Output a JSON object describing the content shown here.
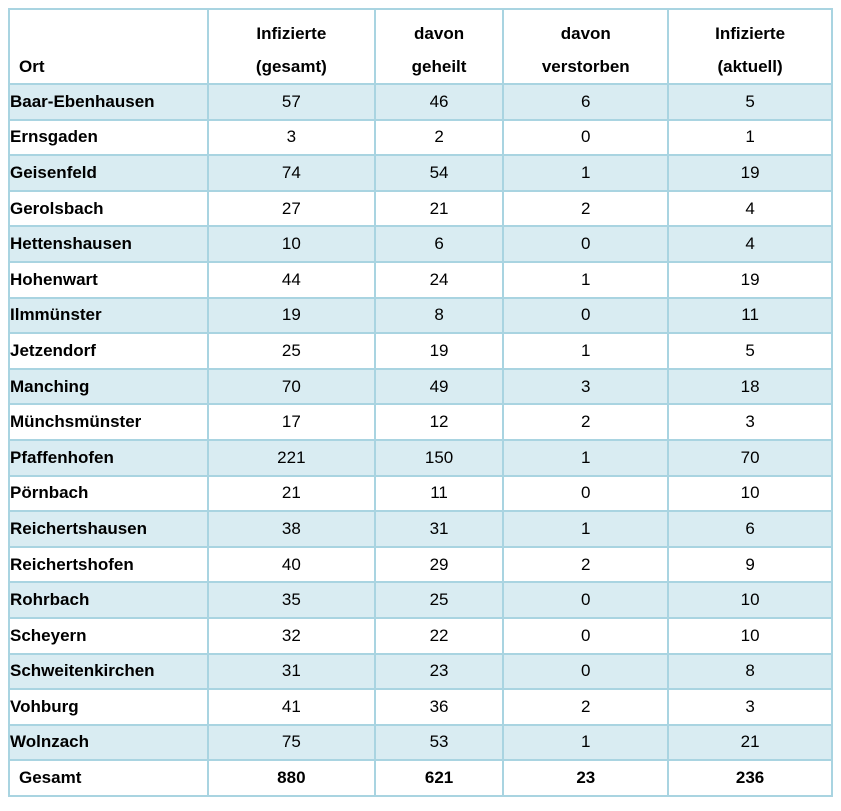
{
  "table": {
    "columns": [
      {
        "id": "ort",
        "lines": [
          "",
          "Ort"
        ]
      },
      {
        "id": "infizierte_gesamt",
        "lines": [
          "Infizierte",
          "(gesamt)"
        ]
      },
      {
        "id": "davon_geheilt",
        "lines": [
          "davon",
          "geheilt"
        ]
      },
      {
        "id": "davon_verstorben",
        "lines": [
          "davon",
          "verstorben"
        ]
      },
      {
        "id": "infizierte_aktuell",
        "lines": [
          "Infizierte",
          "(aktuell)"
        ]
      }
    ],
    "rows": [
      {
        "ort": "Baar-Ebenhausen",
        "infizierte_gesamt": 57,
        "davon_geheilt": 46,
        "davon_verstorben": 6,
        "infizierte_aktuell": 5
      },
      {
        "ort": "Ernsgaden",
        "infizierte_gesamt": 3,
        "davon_geheilt": 2,
        "davon_verstorben": 0,
        "infizierte_aktuell": 1
      },
      {
        "ort": "Geisenfeld",
        "infizierte_gesamt": 74,
        "davon_geheilt": 54,
        "davon_verstorben": 1,
        "infizierte_aktuell": 19
      },
      {
        "ort": "Gerolsbach",
        "infizierte_gesamt": 27,
        "davon_geheilt": 21,
        "davon_verstorben": 2,
        "infizierte_aktuell": 4
      },
      {
        "ort": "Hettenshausen",
        "infizierte_gesamt": 10,
        "davon_geheilt": 6,
        "davon_verstorben": 0,
        "infizierte_aktuell": 4
      },
      {
        "ort": "Hohenwart",
        "infizierte_gesamt": 44,
        "davon_geheilt": 24,
        "davon_verstorben": 1,
        "infizierte_aktuell": 19
      },
      {
        "ort": "Ilmmünster",
        "infizierte_gesamt": 19,
        "davon_geheilt": 8,
        "davon_verstorben": 0,
        "infizierte_aktuell": 11
      },
      {
        "ort": "Jetzendorf",
        "infizierte_gesamt": 25,
        "davon_geheilt": 19,
        "davon_verstorben": 1,
        "infizierte_aktuell": 5
      },
      {
        "ort": "Manching",
        "infizierte_gesamt": 70,
        "davon_geheilt": 49,
        "davon_verstorben": 3,
        "infizierte_aktuell": 18
      },
      {
        "ort": "Münchsmünster",
        "infizierte_gesamt": 17,
        "davon_geheilt": 12,
        "davon_verstorben": 2,
        "infizierte_aktuell": 3
      },
      {
        "ort": "Pfaffenhofen",
        "infizierte_gesamt": 221,
        "davon_geheilt": 150,
        "davon_verstorben": 1,
        "infizierte_aktuell": 70
      },
      {
        "ort": "Pörnbach",
        "infizierte_gesamt": 21,
        "davon_geheilt": 11,
        "davon_verstorben": 0,
        "infizierte_aktuell": 10
      },
      {
        "ort": "Reichertshausen",
        "infizierte_gesamt": 38,
        "davon_geheilt": 31,
        "davon_verstorben": 1,
        "infizierte_aktuell": 6
      },
      {
        "ort": "Reichertshofen",
        "infizierte_gesamt": 40,
        "davon_geheilt": 29,
        "davon_verstorben": 2,
        "infizierte_aktuell": 9
      },
      {
        "ort": "Rohrbach",
        "infizierte_gesamt": 35,
        "davon_geheilt": 25,
        "davon_verstorben": 0,
        "infizierte_aktuell": 10
      },
      {
        "ort": "Scheyern",
        "infizierte_gesamt": 32,
        "davon_geheilt": 22,
        "davon_verstorben": 0,
        "infizierte_aktuell": 10
      },
      {
        "ort": "Schweitenkirchen",
        "infizierte_gesamt": 31,
        "davon_geheilt": 23,
        "davon_verstorben": 0,
        "infizierte_aktuell": 8
      },
      {
        "ort": "Vohburg",
        "infizierte_gesamt": 41,
        "davon_geheilt": 36,
        "davon_verstorben": 2,
        "infizierte_aktuell": 3
      },
      {
        "ort": "Wolnzach",
        "infizierte_gesamt": 75,
        "davon_geheilt": 53,
        "davon_verstorben": 1,
        "infizierte_aktuell": 21
      }
    ],
    "totals": {
      "ort": "Gesamt",
      "infizierte_gesamt": 880,
      "davon_geheilt": 621,
      "davon_verstorben": 23,
      "infizierte_aktuell": 236
    }
  },
  "colors": {
    "row_alt_fill": "#d9ecf2",
    "border": "#a9d4e1",
    "background": "#ffffff",
    "text": "#000000"
  }
}
